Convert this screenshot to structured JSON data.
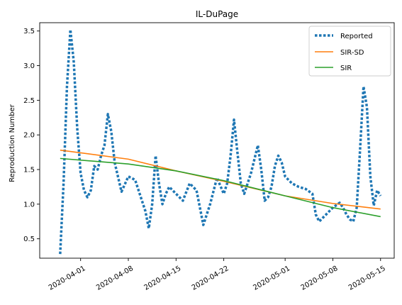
{
  "chart_data": {
    "type": "line",
    "title": "IL-DuPage",
    "xlabel": "",
    "ylabel": "Reproduction Number",
    "xlim": [
      "2020-03-26",
      "2020-05-17"
    ],
    "ylim": [
      0.22,
      3.62
    ],
    "x_ticks": [
      "2020-04-01",
      "2020-04-08",
      "2020-04-15",
      "2020-04-22",
      "2020-05-01",
      "2020-05-08",
      "2020-05-15"
    ],
    "y_ticks": [
      0.5,
      1.0,
      1.5,
      2.0,
      2.5,
      3.0,
      3.5
    ],
    "y_tick_labels": [
      "0.5",
      "1.0",
      "1.5",
      "2.0",
      "2.5",
      "3.0",
      "3.5"
    ],
    "legend_position": "top-right",
    "grid": false,
    "series": [
      {
        "name": "Reported",
        "color": "#1f77b4",
        "style": "dotted",
        "points": [
          [
            "2020-03-29",
            0.28
          ],
          [
            "2020-03-29T12",
            1.3
          ],
          [
            "2020-03-30",
            2.7
          ],
          [
            "2020-03-30T12",
            3.52
          ],
          [
            "2020-03-31",
            3.05
          ],
          [
            "2020-03-31T12",
            2.1
          ],
          [
            "2020-04-01",
            1.45
          ],
          [
            "2020-04-01T12",
            1.2
          ],
          [
            "2020-04-02",
            1.1
          ],
          [
            "2020-04-02T12",
            1.2
          ],
          [
            "2020-04-03",
            1.55
          ],
          [
            "2020-04-03T12",
            1.5
          ],
          [
            "2020-04-04",
            1.7
          ],
          [
            "2020-04-04T12",
            1.85
          ],
          [
            "2020-04-05",
            2.3
          ],
          [
            "2020-04-05T12",
            2.05
          ],
          [
            "2020-04-06",
            1.6
          ],
          [
            "2020-04-07",
            1.18
          ],
          [
            "2020-04-08",
            1.4
          ],
          [
            "2020-04-09",
            1.35
          ],
          [
            "2020-04-10",
            1.05
          ],
          [
            "2020-04-10T12",
            0.9
          ],
          [
            "2020-04-11",
            0.65
          ],
          [
            "2020-04-11T12",
            1.0
          ],
          [
            "2020-04-12",
            1.7
          ],
          [
            "2020-04-12T12",
            1.3
          ],
          [
            "2020-04-13",
            1.0
          ],
          [
            "2020-04-13T12",
            1.15
          ],
          [
            "2020-04-14",
            1.25
          ],
          [
            "2020-04-15",
            1.15
          ],
          [
            "2020-04-16",
            1.05
          ],
          [
            "2020-04-17",
            1.3
          ],
          [
            "2020-04-18",
            1.2
          ],
          [
            "2020-04-18T12",
            0.95
          ],
          [
            "2020-04-19",
            0.7
          ],
          [
            "2020-04-20",
            1.0
          ],
          [
            "2020-04-21",
            1.38
          ],
          [
            "2020-04-22",
            1.15
          ],
          [
            "2020-04-22T12",
            1.3
          ],
          [
            "2020-04-23",
            1.7
          ],
          [
            "2020-04-23T12",
            2.22
          ],
          [
            "2020-04-24",
            1.75
          ],
          [
            "2020-04-24T12",
            1.3
          ],
          [
            "2020-04-25",
            1.15
          ],
          [
            "2020-04-26",
            1.45
          ],
          [
            "2020-04-26T12",
            1.65
          ],
          [
            "2020-04-27",
            1.85
          ],
          [
            "2020-04-27T12",
            1.5
          ],
          [
            "2020-04-28",
            1.05
          ],
          [
            "2020-04-28T12",
            1.1
          ],
          [
            "2020-04-29",
            1.25
          ],
          [
            "2020-04-29T12",
            1.55
          ],
          [
            "2020-04-30",
            1.7
          ],
          [
            "2020-04-30T12",
            1.6
          ],
          [
            "2020-05-01",
            1.4
          ],
          [
            "2020-05-02",
            1.3
          ],
          [
            "2020-05-03",
            1.25
          ],
          [
            "2020-05-04",
            1.22
          ],
          [
            "2020-05-05",
            1.15
          ],
          [
            "2020-05-05T12",
            0.85
          ],
          [
            "2020-05-06",
            0.75
          ],
          [
            "2020-05-07",
            0.85
          ],
          [
            "2020-05-08",
            0.95
          ],
          [
            "2020-05-09",
            1.02
          ],
          [
            "2020-05-09T12",
            0.95
          ],
          [
            "2020-05-10",
            0.85
          ],
          [
            "2020-05-10T12",
            0.78
          ],
          [
            "2020-05-11",
            0.75
          ],
          [
            "2020-05-11T12",
            0.95
          ],
          [
            "2020-05-12",
            1.8
          ],
          [
            "2020-05-12T12",
            2.7
          ],
          [
            "2020-05-13",
            2.4
          ],
          [
            "2020-05-13T12",
            1.4
          ],
          [
            "2020-05-14",
            0.98
          ],
          [
            "2020-05-14T12",
            1.2
          ],
          [
            "2020-05-15",
            1.12
          ]
        ]
      },
      {
        "name": "SIR-SD",
        "color": "#ff7f0e",
        "style": "solid",
        "points": [
          [
            "2020-03-29",
            1.78
          ],
          [
            "2020-04-08",
            1.65
          ],
          [
            "2020-04-15",
            1.48
          ],
          [
            "2020-04-22",
            1.33
          ],
          [
            "2020-05-01",
            1.12
          ],
          [
            "2020-05-08",
            1.01
          ],
          [
            "2020-05-15",
            0.93
          ]
        ]
      },
      {
        "name": "SIR",
        "color": "#2ca02c",
        "style": "solid",
        "points": [
          [
            "2020-03-29",
            1.66
          ],
          [
            "2020-04-08",
            1.58
          ],
          [
            "2020-04-15",
            1.48
          ],
          [
            "2020-04-22",
            1.34
          ],
          [
            "2020-05-01",
            1.12
          ],
          [
            "2020-05-08",
            0.95
          ],
          [
            "2020-05-15",
            0.82
          ]
        ]
      }
    ]
  }
}
